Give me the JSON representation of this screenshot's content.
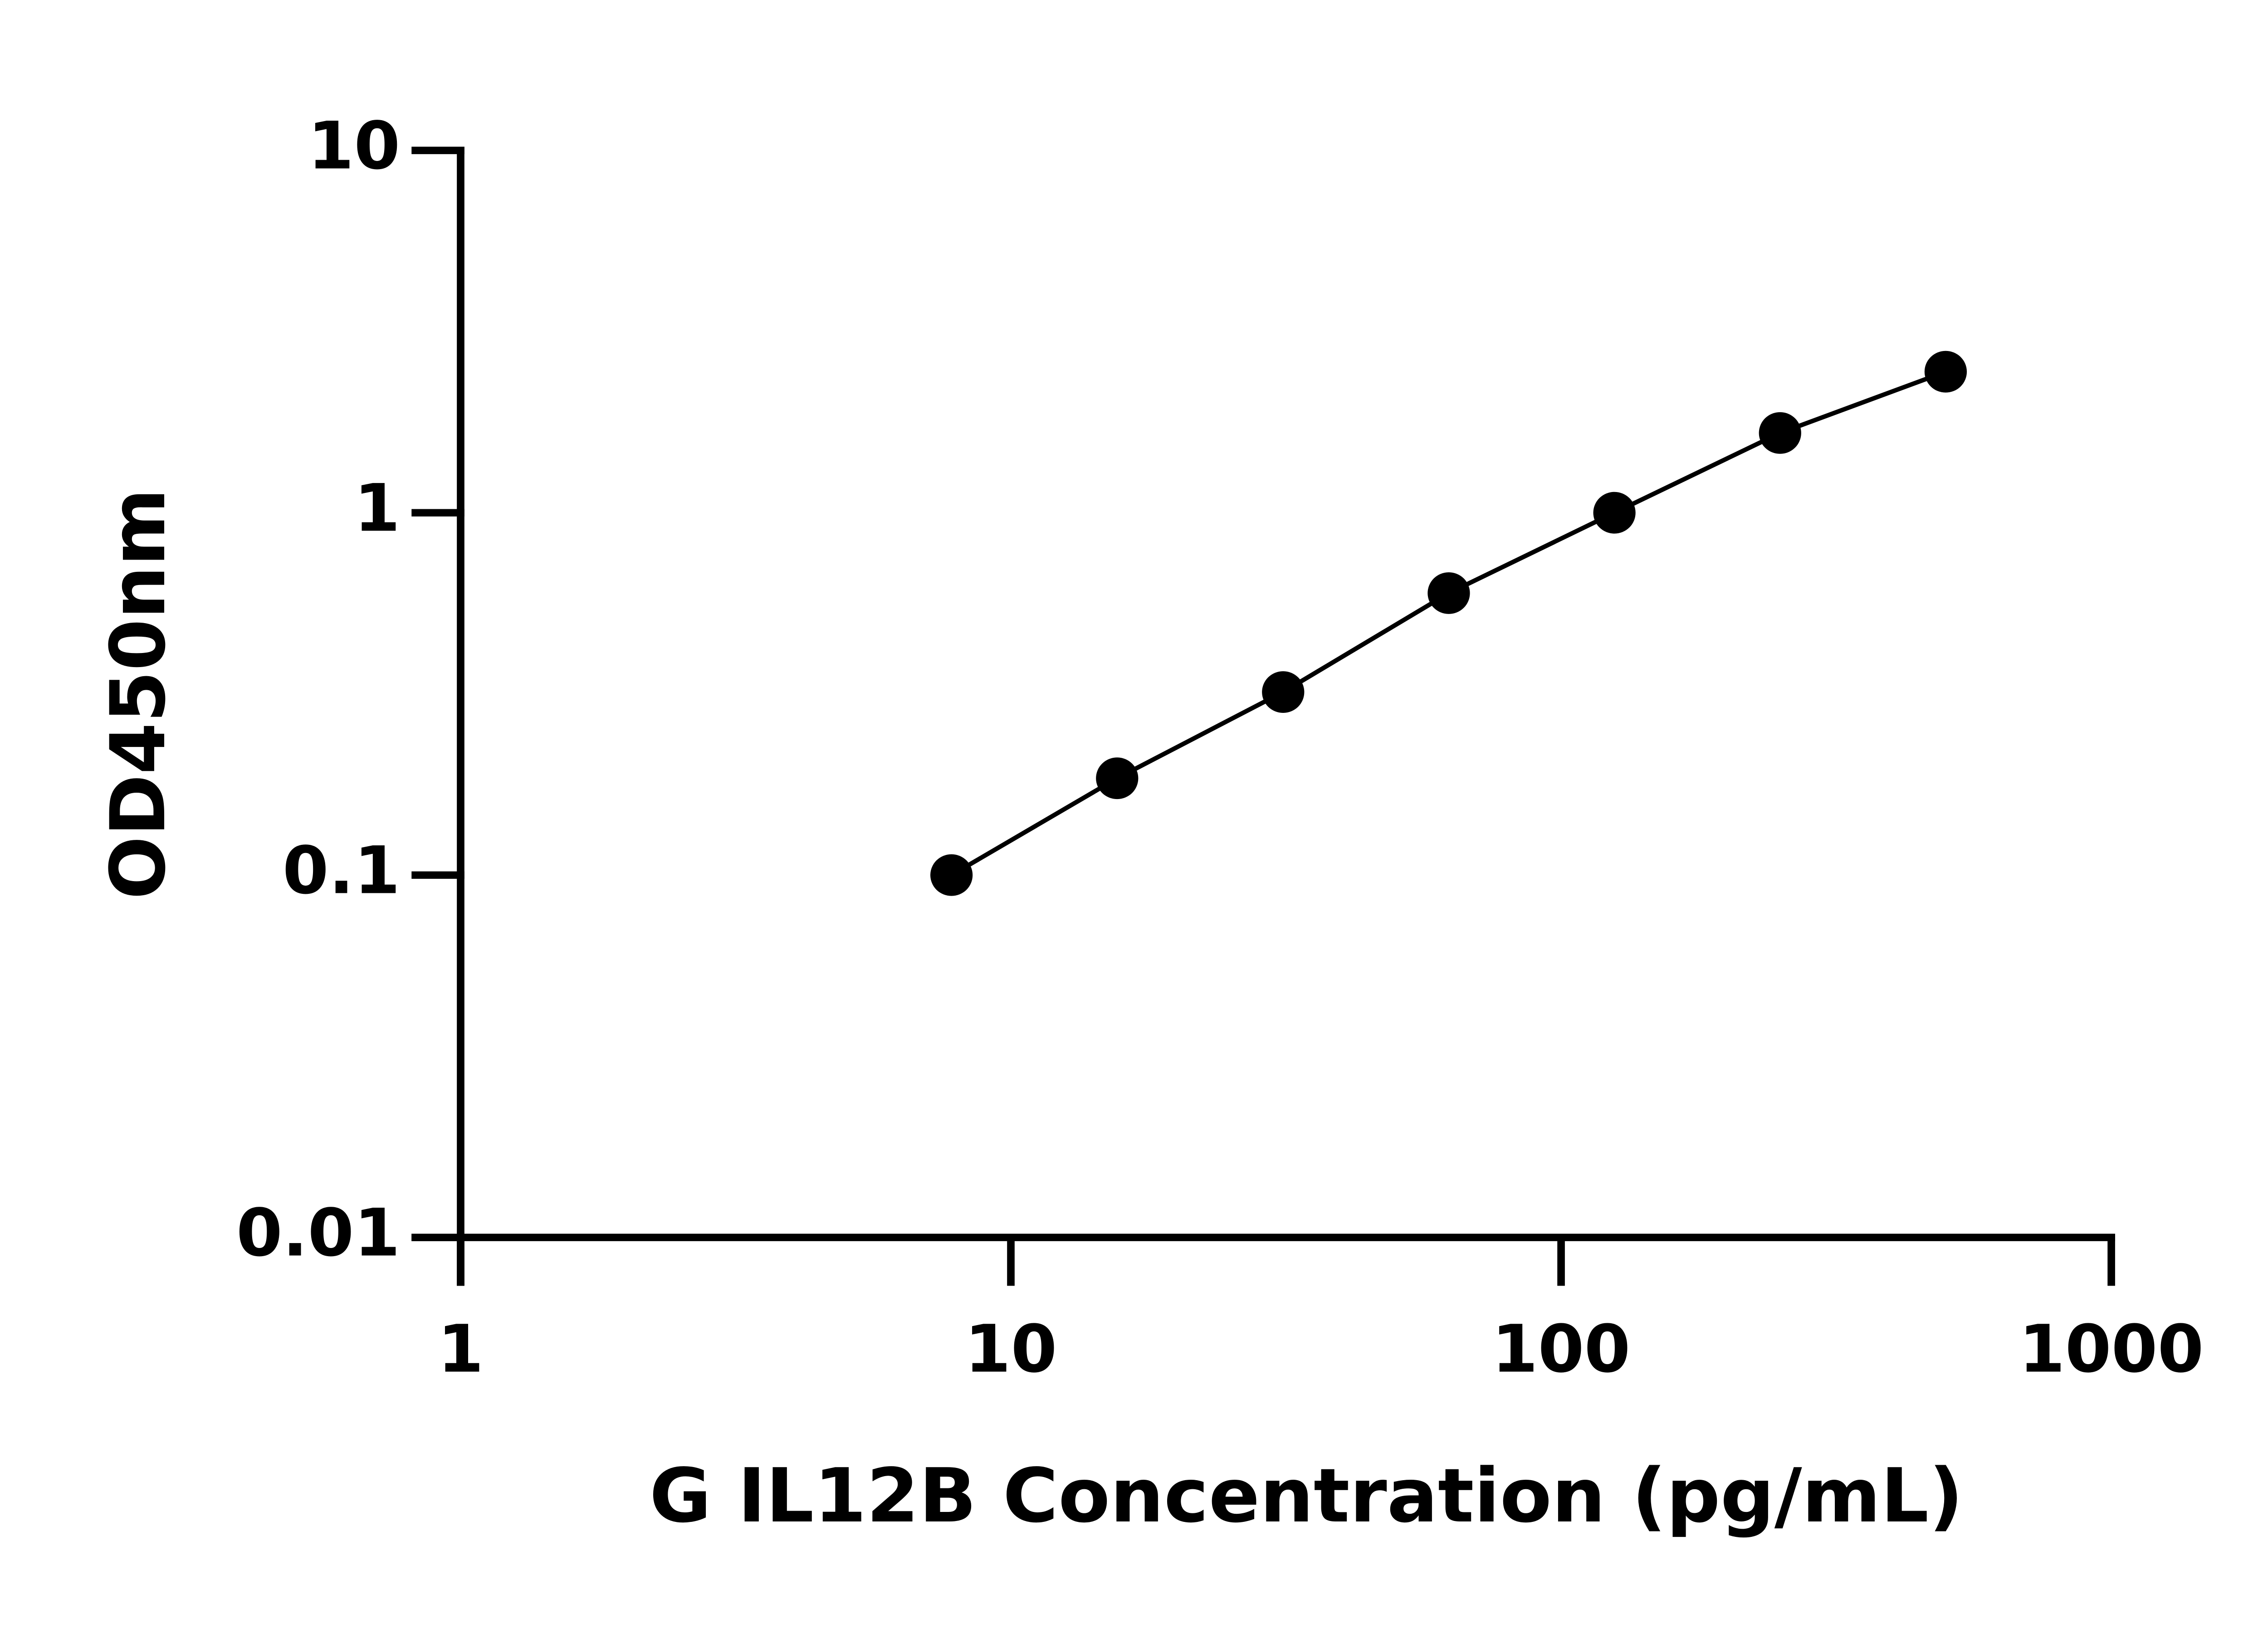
{
  "chart_data": {
    "type": "line",
    "xlabel": "G IL12B Concentration (pg/mL)",
    "ylabel": "OD450nm",
    "x": [
      7.8,
      15.6,
      31.25,
      62.5,
      125,
      250,
      500
    ],
    "series": [
      {
        "color": "#000000",
        "values": [
          0.1,
          0.185,
          0.32,
          0.6,
          1.0,
          1.66,
          2.45
        ]
      }
    ],
    "xscale": "log",
    "yscale": "log",
    "xlim": [
      1,
      1000
    ],
    "ylim": [
      0.01,
      10
    ],
    "xticks": [
      1,
      10,
      100,
      1000
    ],
    "yticks": [
      0.01,
      0.1,
      1,
      10
    ],
    "markers": true
  }
}
